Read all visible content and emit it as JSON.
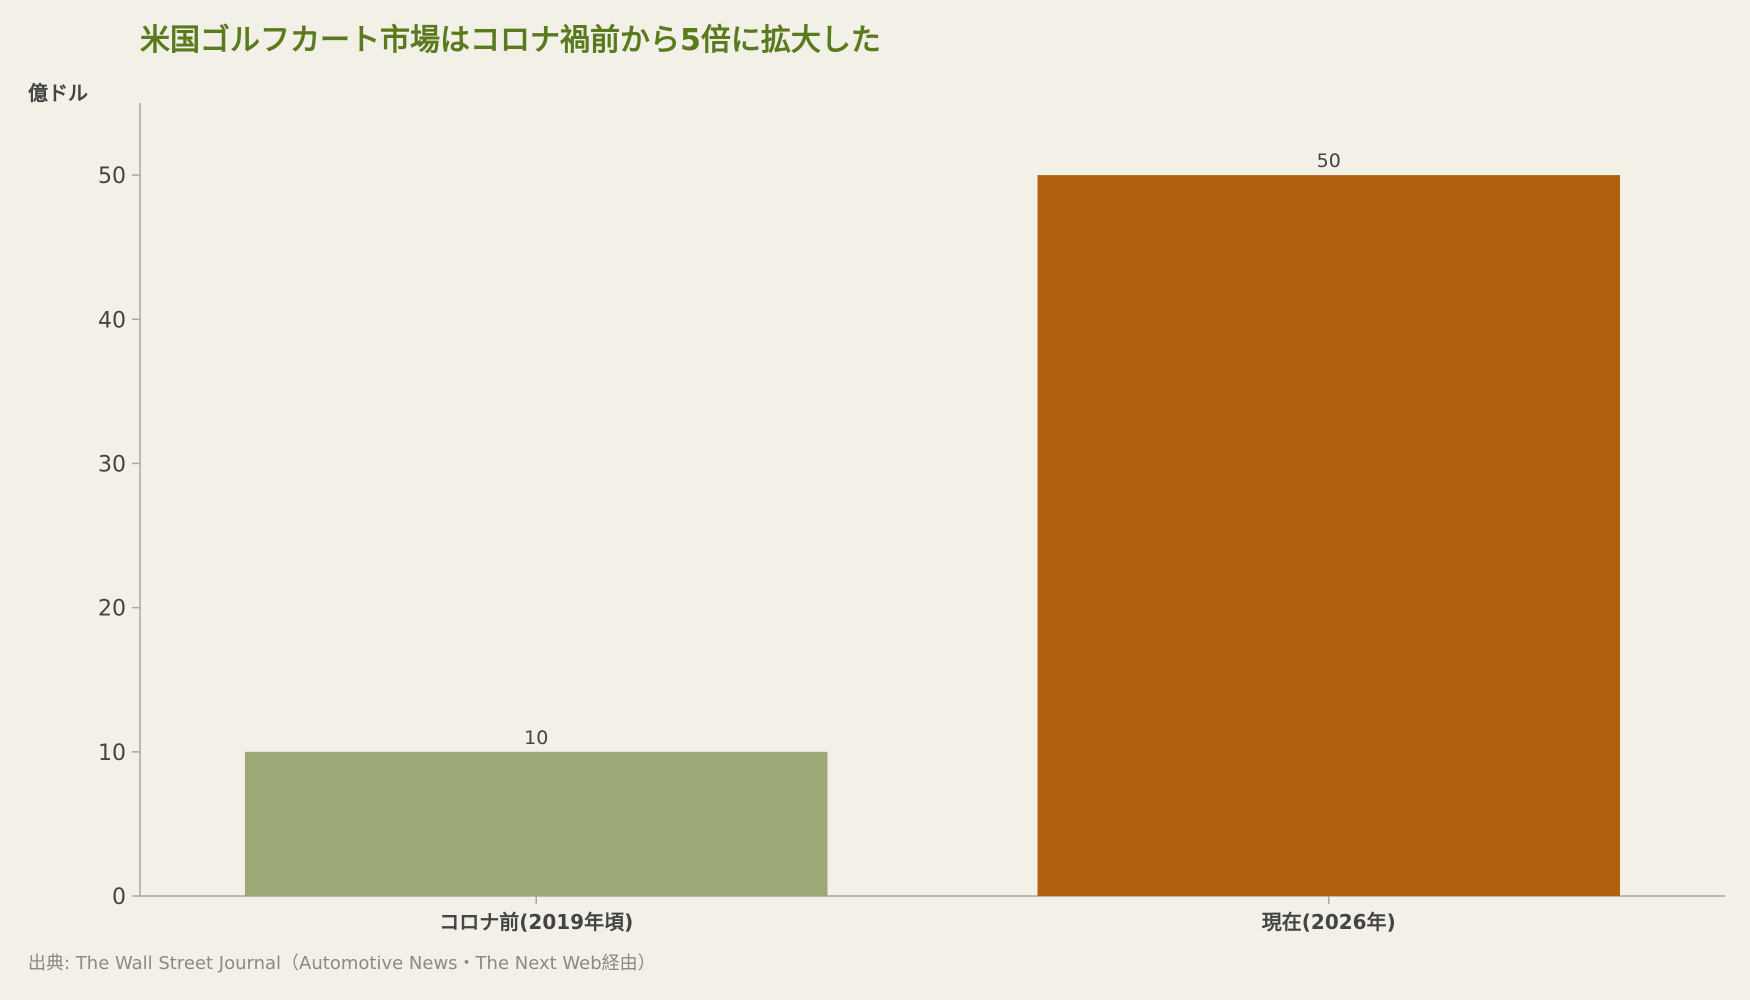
{
  "chart_data": {
    "type": "bar",
    "title": "米国ゴルフカート市場はコロナ禍前から5倍に拡大した",
    "ylabel": "億ドル",
    "xlabel": "",
    "categories": [
      "コロナ前(2019年頃)",
      "現在(2026年)"
    ],
    "values": [
      10,
      50
    ],
    "value_labels": [
      "10",
      "50"
    ],
    "colors": [
      "#9ca876",
      "#b0600f"
    ],
    "ylim": [
      0,
      55
    ],
    "yticks": [
      0,
      10,
      20,
      30,
      40,
      50
    ],
    "grid": false,
    "legend": "none",
    "source": "出典: The Wall Street Journal（Automotive News・The Next Web経由）"
  },
  "colors": {
    "background": "#f3f0e8",
    "title": "#5a7a1e",
    "text": "#444444",
    "source": "#8a8a80",
    "axis": "#a8a89c"
  }
}
